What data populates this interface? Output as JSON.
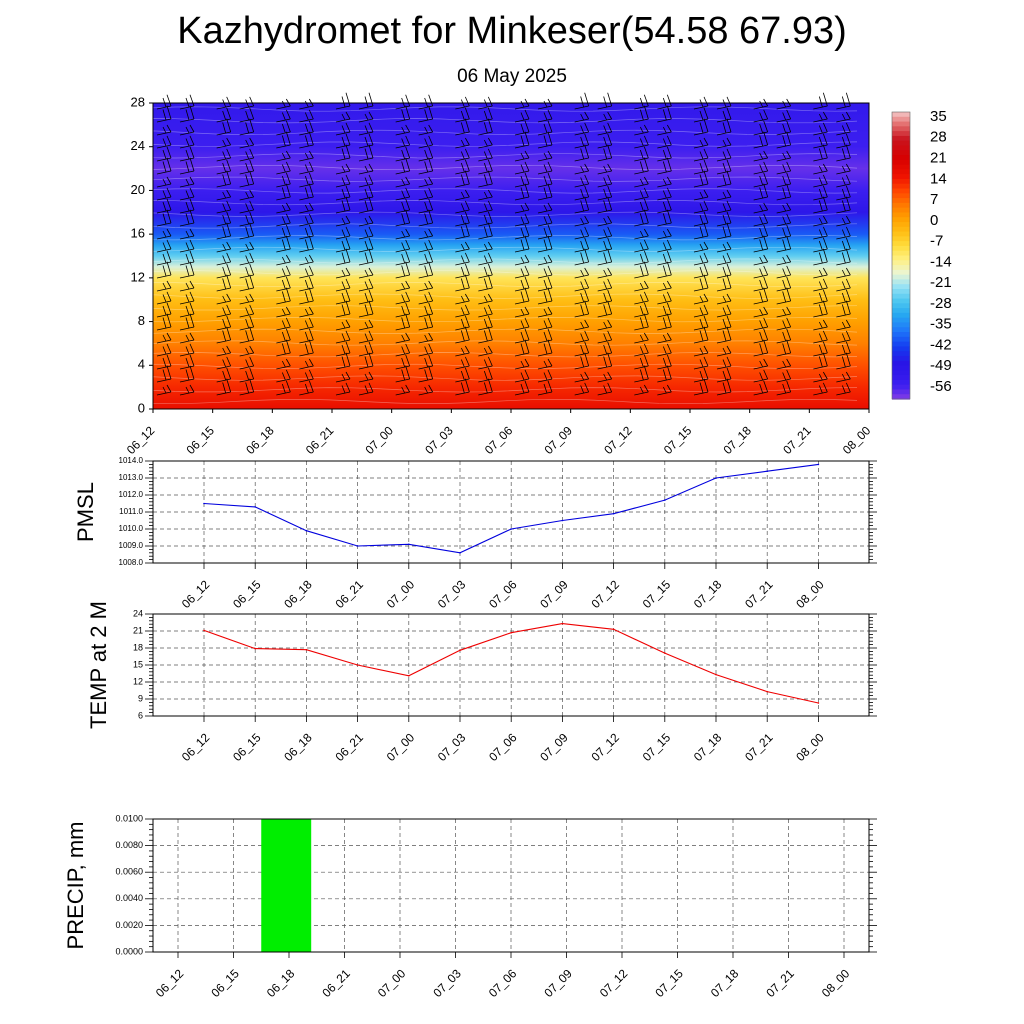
{
  "page": {
    "title": "Kazhydromet for Minkeser(54.58 67.93)",
    "subtitle": "06 May 2025"
  },
  "colors": {
    "pmsl_line": "#0000dd",
    "temp_line": "#ee0000",
    "precip_bar": "#00ee00",
    "grid": "#555555"
  },
  "chart_data": [
    {
      "id": "profile",
      "type": "heatmap",
      "title": "",
      "xlabel": "",
      "ylabel": "",
      "x_ticks": [
        "06_12",
        "06_15",
        "06_18",
        "06_21",
        "07_00",
        "07_03",
        "07_06",
        "07_09",
        "07_12",
        "07_15",
        "07_18",
        "07_21",
        "08_00"
      ],
      "y_ticks": [
        0,
        4,
        8,
        12,
        16,
        20,
        24,
        28
      ],
      "ylim": [
        0,
        28
      ],
      "colorbar_labels": [
        "35",
        "28",
        "21",
        "14",
        "7",
        "0",
        "-7",
        "-14",
        "-21",
        "-28",
        "-35",
        "-42",
        "-49",
        "-56"
      ],
      "colorbar_range": [
        -63,
        42
      ],
      "temperature_profile_by_level": [
        {
          "level": 0,
          "value": 20
        },
        {
          "level": 2,
          "value": 16
        },
        {
          "level": 4,
          "value": 12
        },
        {
          "level": 6,
          "value": 7
        },
        {
          "level": 8,
          "value": 3
        },
        {
          "level": 10,
          "value": -2
        },
        {
          "level": 12,
          "value": -9
        },
        {
          "level": 13,
          "value": -18
        },
        {
          "level": 14,
          "value": -26
        },
        {
          "level": 15,
          "value": -33
        },
        {
          "level": 16,
          "value": -41
        },
        {
          "level": 18,
          "value": -52
        },
        {
          "level": 20,
          "value": -58
        },
        {
          "level": 22,
          "value": -61
        },
        {
          "level": 24,
          "value": -58
        },
        {
          "level": 26,
          "value": -56
        },
        {
          "level": 28,
          "value": -54
        }
      ],
      "wind_barbs": true
    },
    {
      "id": "pmsl",
      "type": "line",
      "title": "",
      "xlabel": "",
      "ylabel": "PMSL",
      "categories": [
        "06_12",
        "06_15",
        "06_18",
        "06_21",
        "07_00",
        "07_03",
        "07_06",
        "07_09",
        "07_12",
        "07_15",
        "07_18",
        "07_21",
        "08_00"
      ],
      "values": [
        1011.5,
        1011.3,
        1009.9,
        1009.0,
        1009.1,
        1008.6,
        1010.0,
        1010.5,
        1010.9,
        1011.7,
        1013.0,
        1013.4,
        1013.8
      ],
      "y_ticks": [
        "1008.0",
        "1009.0",
        "1010.0",
        "1011.0",
        "1012.0",
        "1013.0",
        "1014.0"
      ],
      "ylim": [
        1008.0,
        1014.0
      ],
      "grid": true
    },
    {
      "id": "temp",
      "type": "line",
      "title": "",
      "xlabel": "",
      "ylabel": "TEMP at 2 M",
      "categories": [
        "06_12",
        "06_15",
        "06_18",
        "06_21",
        "07_00",
        "07_03",
        "07_06",
        "07_09",
        "07_12",
        "07_15",
        "07_18",
        "07_21",
        "08_00"
      ],
      "values": [
        21.1,
        17.9,
        17.7,
        15.0,
        13.1,
        17.6,
        20.7,
        22.3,
        21.3,
        17.1,
        13.3,
        10.3,
        8.3
      ],
      "y_ticks": [
        "6",
        "9",
        "12",
        "15",
        "18",
        "21",
        "24"
      ],
      "ylim": [
        6,
        24
      ],
      "grid": true
    },
    {
      "id": "precip",
      "type": "bar",
      "title": "",
      "xlabel": "",
      "ylabel": "PRECIP, mm",
      "categories": [
        "06_12",
        "06_15",
        "06_18",
        "06_21",
        "07_00",
        "07_03",
        "07_06",
        "07_09",
        "07_12",
        "07_15",
        "07_18",
        "07_21",
        "08_00"
      ],
      "bars": [
        {
          "from": "06_15",
          "to": "06_18",
          "value": 0.01
        }
      ],
      "y_ticks": [
        "0.0000",
        "0.0020",
        "0.0040",
        "0.0060",
        "0.0080",
        "0.0100"
      ],
      "ylim": [
        0,
        0.01
      ],
      "grid": true
    }
  ]
}
